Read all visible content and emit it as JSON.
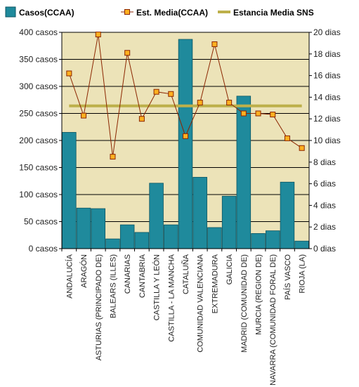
{
  "chart_data": {
    "type": "bar",
    "categories": [
      "ANDALUCÍA",
      "ARAGÓN",
      "ASTURIAS (PRINCIPADO DE)",
      "BALEARS (ILLES)",
      "CANARIAS",
      "CANTABRIA",
      "CASTILLA Y LEÓN",
      "CASTILLA - LA MANCHA",
      "CATALUÑA",
      "COMUNIDAD VALENCIANA",
      "EXTREMADURA",
      "GALICIA",
      "MADRID (COMUNIDAD DE)",
      "MURCIA (REGION DE)",
      "NAVARRA (COMUNIDAD FORAL DE)",
      "PAÍS VASCO",
      "RIOJA (LA)"
    ],
    "series": [
      {
        "name": "Casos(CCAA)",
        "type": "bar",
        "axis": "left",
        "color": "#1f8a9c",
        "values": [
          215,
          75,
          74,
          18,
          44,
          30,
          121,
          44,
          387,
          132,
          39,
          97,
          282,
          28,
          33,
          123,
          14
        ]
      },
      {
        "name": "Est. Media(CCAA)",
        "type": "line",
        "axis": "right",
        "color": "#8b2500",
        "marker_color": "#ffb020",
        "values": [
          16.2,
          12.3,
          19.8,
          8.5,
          18.1,
          12.0,
          14.5,
          14.3,
          10.4,
          13.5,
          18.9,
          13.5,
          12.5,
          12.5,
          12.4,
          10.2,
          9.3
        ]
      },
      {
        "name": "Estancia Media SNS",
        "type": "reference",
        "axis": "right",
        "color": "#bdb04a",
        "value": 13.2
      }
    ],
    "y_left": {
      "ylim": [
        0,
        400
      ],
      "ticks": [
        0,
        50,
        100,
        150,
        200,
        250,
        300,
        350,
        400
      ],
      "tick_labels": [
        "0 casos",
        "50 casos",
        "100 casos",
        "150 casos",
        "200 casos",
        "250 casos",
        "300 casos",
        "350 casos",
        "400 casos"
      ]
    },
    "y_right": {
      "ylim": [
        0,
        20
      ],
      "ticks": [
        0,
        2,
        4,
        6,
        8,
        10,
        12,
        14,
        16,
        18,
        20
      ],
      "tick_labels": [
        "0 dias",
        "2 dias",
        "4 dias",
        "6 dias",
        "8 dias",
        "10 dias",
        "12 dias",
        "14 dias",
        "16 dias",
        "18 dias",
        "20 dias"
      ]
    },
    "grid": true,
    "legend": "top",
    "plot_background": "#ece3b8"
  }
}
